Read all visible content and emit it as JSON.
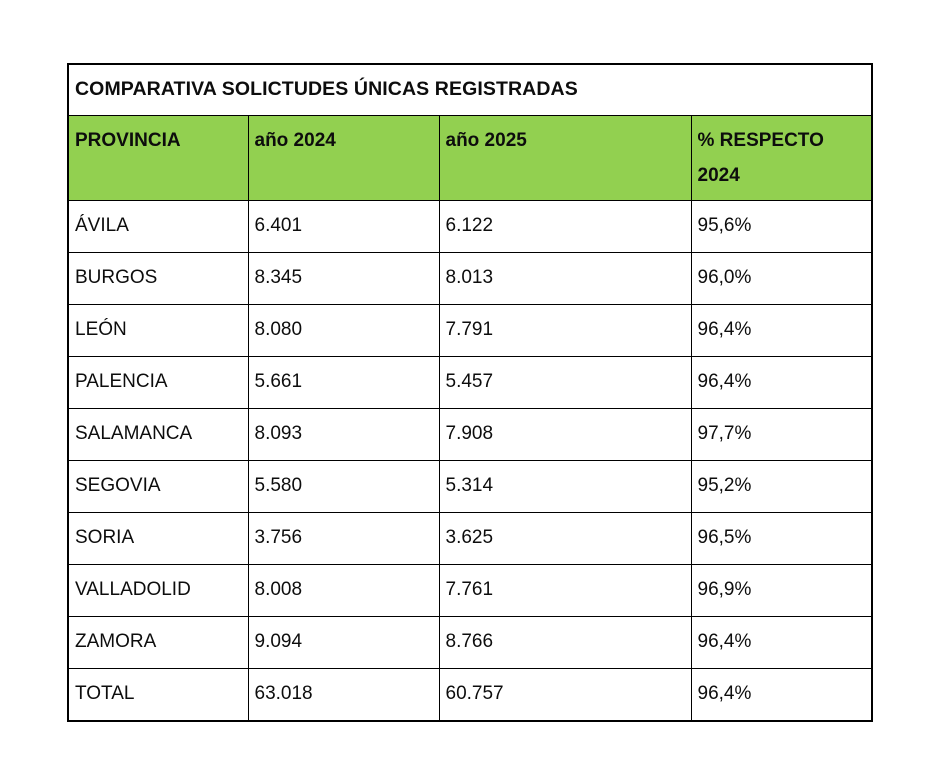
{
  "colors": {
    "header_bg": "#92D050",
    "border": "#000000",
    "text": "#0d0d0d",
    "page_bg": "#ffffff"
  },
  "chart_data": {
    "type": "table",
    "title": "COMPARATIVA SOLICTUDES ÚNICAS REGISTRADAS",
    "columns": [
      "PROVINCIA",
      "año 2024",
      "año 2025",
      "% RESPECTO 2024"
    ],
    "rows": [
      {
        "provincia": "ÁVILA",
        "ano2024": "6.401",
        "ano2025": "6.122",
        "pct": "95,6%"
      },
      {
        "provincia": "BURGOS",
        "ano2024": "8.345",
        "ano2025": "8.013",
        "pct": "96,0%"
      },
      {
        "provincia": "LEÓN",
        "ano2024": "8.080",
        "ano2025": "7.791",
        "pct": "96,4%"
      },
      {
        "provincia": "PALENCIA",
        "ano2024": "5.661",
        "ano2025": "5.457",
        "pct": "96,4%"
      },
      {
        "provincia": "SALAMANCA",
        "ano2024": "8.093",
        "ano2025": "7.908",
        "pct": "97,7%"
      },
      {
        "provincia": "SEGOVIA",
        "ano2024": "5.580",
        "ano2025": "5.314",
        "pct": "95,2%"
      },
      {
        "provincia": "SORIA",
        "ano2024": "3.756",
        "ano2025": "3.625",
        "pct": "96,5%"
      },
      {
        "provincia": "VALLADOLID",
        "ano2024": "8.008",
        "ano2025": "7.761",
        "pct": "96,9%"
      },
      {
        "provincia": "ZAMORA",
        "ano2024": "9.094",
        "ano2025": "8.766",
        "pct": "96,4%"
      },
      {
        "provincia": "TOTAL",
        "ano2024": "63.018",
        "ano2025": "60.757",
        "pct": "96,4%"
      }
    ]
  }
}
